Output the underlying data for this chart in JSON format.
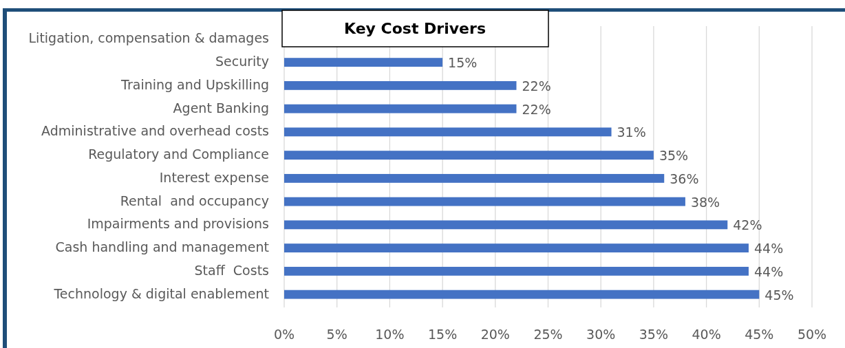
{
  "chart_data": {
    "type": "bar",
    "orientation": "horizontal",
    "title": "Key Cost Drivers",
    "categories": [
      "Litigation, compensation & damages",
      "Security",
      "Training and Upskilling",
      "Agent Banking",
      "Administrative and overhead costs",
      "Regulatory and Compliance",
      "Interest expense",
      "Rental  and occupancy",
      "Impairments and provisions",
      "Cash handling and management",
      "Staff  Costs",
      "Technology & digital enablement"
    ],
    "values": [
      null,
      15,
      22,
      22,
      31,
      35,
      36,
      38,
      42,
      44,
      44,
      45
    ],
    "color": "#4472c4",
    "value_labels": [
      null,
      "15%",
      "22%",
      "22%",
      "31%",
      "35%",
      "36%",
      "38%",
      "42%",
      "44%",
      "44%",
      "45%"
    ],
    "xlim": [
      0,
      50
    ],
    "xticks": [
      {
        "value": 0,
        "label": "0%"
      },
      {
        "value": 5,
        "label": "5%"
      },
      {
        "value": 10,
        "label": "10%"
      },
      {
        "value": 15,
        "label": "15%"
      },
      {
        "value": 20,
        "label": "20%"
      },
      {
        "value": 25,
        "label": "25%"
      },
      {
        "value": 30,
        "label": "30%"
      },
      {
        "value": 35,
        "label": "35%"
      },
      {
        "value": 40,
        "label": "40%"
      },
      {
        "value": 45,
        "label": "45%"
      },
      {
        "value": 50,
        "label": "50%"
      }
    ],
    "grid": "x"
  }
}
